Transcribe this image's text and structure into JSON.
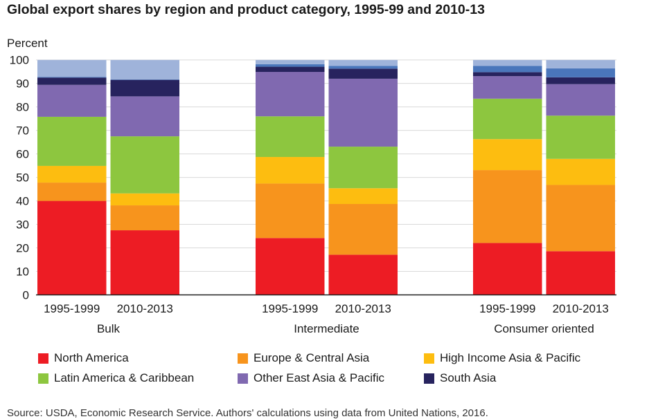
{
  "chart_data": {
    "type": "bar",
    "stacked": true,
    "title": "Global export shares by region and product category, 1995-99 and 2010-13",
    "ylabel": "Percent",
    "ylim": [
      0,
      100
    ],
    "yticks": [
      "0",
      "10",
      "20",
      "30",
      "40",
      "50",
      "60",
      "70",
      "80",
      "90",
      "100"
    ],
    "grid": true,
    "legend_placement": "bottom",
    "groups": [
      {
        "label": "Bulk",
        "periods": [
          "1995-1999",
          "2010-2013"
        ]
      },
      {
        "label": "Intermediate",
        "periods": [
          "1995-1999",
          "2010-2013"
        ]
      },
      {
        "label": "Consumer oriented",
        "periods": [
          "1995-1999",
          "2010-2013"
        ]
      }
    ],
    "series": [
      {
        "name": "North America",
        "color": "#ed1c24",
        "values": [
          40.0,
          27.5,
          24.2,
          17.1,
          22.1,
          18.6
        ]
      },
      {
        "name": "Europe & Central Asia",
        "color": "#f7941d",
        "values": [
          7.8,
          10.6,
          23.2,
          21.6,
          31.0,
          28.2
        ]
      },
      {
        "name": "High Income Asia & Pacific",
        "color": "#fdbd10",
        "values": [
          7.1,
          5.1,
          11.3,
          6.7,
          13.2,
          11.1
        ]
      },
      {
        "name": "Latin America & Caribbean",
        "color": "#8dc63f",
        "values": [
          20.9,
          24.3,
          17.3,
          17.7,
          17.2,
          18.4
        ]
      },
      {
        "name": "Other East Asia & Pacific",
        "color": "#8069b0",
        "values": [
          13.6,
          17.0,
          18.9,
          28.9,
          9.6,
          13.4
        ]
      },
      {
        "name": "South Asia",
        "color": "#27235e",
        "values": [
          3.1,
          7.0,
          2.2,
          4.3,
          1.7,
          2.9
        ]
      },
      {
        "color": "#4a76bb",
        "values": [
          0.3,
          0.2,
          1.1,
          1.2,
          2.7,
          3.8
        ]
      },
      {
        "color": "#9fb3da",
        "values": [
          7.2,
          8.3,
          1.8,
          2.5,
          2.5,
          3.6
        ]
      }
    ]
  },
  "source": "Source: USDA, Economic Research Service. Authors' calculations using data from United Nations, 2016."
}
